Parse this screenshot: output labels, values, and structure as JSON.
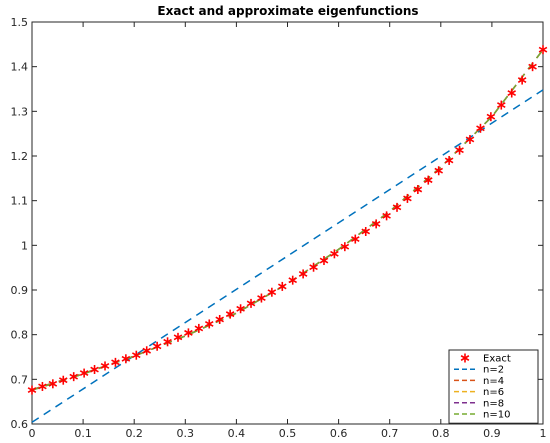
{
  "chart_data": {
    "type": "line",
    "title": "Exact and approximate eigenfunctions",
    "xlabel": "",
    "ylabel": "",
    "xlim": [
      0,
      1
    ],
    "ylim": [
      0.6,
      1.5
    ],
    "xticks": [
      0,
      0.1,
      0.2,
      0.3,
      0.4,
      0.5,
      0.6,
      0.7,
      0.8,
      0.9,
      1
    ],
    "xtick_labels": [
      "0",
      "0.1",
      "0.2",
      "0.3",
      "0.4",
      "0.5",
      "0.6",
      "0.7",
      "0.8",
      "0.9",
      "1"
    ],
    "yticks": [
      0.6,
      0.7,
      0.8,
      0.9,
      1,
      1.1,
      1.2,
      1.3,
      1.4,
      1.5
    ],
    "ytick_labels": [
      "0.6",
      "0.7",
      "0.8",
      "0.9",
      "1",
      "1.1",
      "1.2",
      "1.3",
      "1.4",
      "1.5"
    ],
    "grid": false,
    "legend_position": "bottom-right",
    "exact": {
      "name": "Exact",
      "color": "#ff0000",
      "marker": "asterisk",
      "x": [
        0,
        0.0204,
        0.0408,
        0.0612,
        0.0816,
        0.102,
        0.1224,
        0.1429,
        0.1633,
        0.1837,
        0.2041,
        0.2245,
        0.2449,
        0.2653,
        0.2857,
        0.3061,
        0.3265,
        0.3469,
        0.3673,
        0.3878,
        0.4082,
        0.4286,
        0.449,
        0.4694,
        0.4898,
        0.5102,
        0.5306,
        0.551,
        0.5714,
        0.5918,
        0.6122,
        0.6327,
        0.6531,
        0.6735,
        0.6939,
        0.7143,
        0.7347,
        0.7551,
        0.7755,
        0.7959,
        0.8163,
        0.8367,
        0.8571,
        0.8776,
        0.898,
        0.9184,
        0.9388,
        0.9592,
        0.9796,
        1.0
      ],
      "y": [
        0.676,
        0.684,
        0.69,
        0.698,
        0.706,
        0.714,
        0.722,
        0.73,
        0.738,
        0.746,
        0.754,
        0.764,
        0.774,
        0.784,
        0.794,
        0.804,
        0.814,
        0.824,
        0.834,
        0.846,
        0.858,
        0.87,
        0.882,
        0.895,
        0.908,
        0.922,
        0.936,
        0.951,
        0.966,
        0.981,
        0.997,
        1.014,
        1.031,
        1.048,
        1.066,
        1.085,
        1.105,
        1.125,
        1.146,
        1.167,
        1.19,
        1.213,
        1.237,
        1.262,
        1.288,
        1.314,
        1.341,
        1.37,
        1.4,
        1.438
      ]
    },
    "series": [
      {
        "name": "n=2",
        "color": "#0072bd",
        "dasharray": "8,6",
        "x": [
          0,
          1
        ],
        "y": [
          0.604,
          1.348
        ]
      },
      {
        "name": "n=4",
        "color": "#d95319",
        "dasharray": "8,6",
        "x": [
          0,
          0.1,
          0.2,
          0.3,
          0.4,
          0.5,
          0.6,
          0.7,
          0.8,
          0.9,
          1.0
        ],
        "y": [
          0.677,
          0.713,
          0.752,
          0.797,
          0.848,
          0.914,
          0.991,
          1.076,
          1.175,
          1.288,
          1.438
        ]
      },
      {
        "name": "n=6",
        "color": "#edb120",
        "dasharray": "8,6",
        "x": [
          0,
          0.1,
          0.2,
          0.3,
          0.4,
          0.5,
          0.6,
          0.7,
          0.8,
          0.9,
          1.0
        ],
        "y": [
          0.676,
          0.712,
          0.752,
          0.797,
          0.848,
          0.914,
          0.991,
          1.076,
          1.175,
          1.288,
          1.438
        ]
      },
      {
        "name": "n=8",
        "color": "#7e2f8e",
        "dasharray": "8,6",
        "x": [
          0,
          0.1,
          0.2,
          0.3,
          0.4,
          0.5,
          0.6,
          0.7,
          0.8,
          0.9,
          1.0
        ],
        "y": [
          0.676,
          0.712,
          0.752,
          0.797,
          0.848,
          0.914,
          0.991,
          1.076,
          1.175,
          1.288,
          1.438
        ]
      },
      {
        "name": "n=10",
        "color": "#77ac30",
        "dasharray": "8,6",
        "x": [
          0,
          0.1,
          0.2,
          0.3,
          0.4,
          0.5,
          0.6,
          0.7,
          0.8,
          0.9,
          1.0
        ],
        "y": [
          0.676,
          0.712,
          0.752,
          0.797,
          0.848,
          0.914,
          0.991,
          1.076,
          1.175,
          1.288,
          1.438
        ]
      }
    ]
  }
}
